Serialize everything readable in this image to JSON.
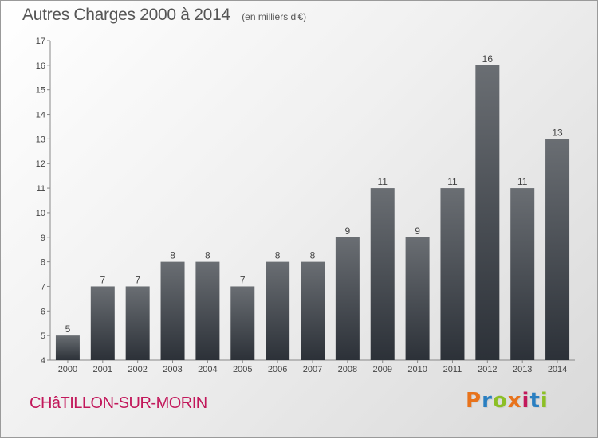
{
  "chart_data": {
    "type": "bar",
    "title": "Autres Charges 2000 à 2014",
    "subtitle": "(en milliers d'€)",
    "categories": [
      "2000",
      "2001",
      "2002",
      "2003",
      "2004",
      "2005",
      "2006",
      "2007",
      "2008",
      "2009",
      "2010",
      "2011",
      "2012",
      "2013",
      "2014"
    ],
    "values": [
      5,
      7,
      7,
      8,
      8,
      7,
      8,
      8,
      9,
      11,
      9,
      11,
      16,
      11,
      13
    ],
    "ylim": [
      4,
      17
    ],
    "yticks": [
      4,
      5,
      6,
      7,
      8,
      9,
      10,
      11,
      12,
      13,
      14,
      15,
      16,
      17
    ],
    "grid": false,
    "bar_color_top": "#6a6e73",
    "bar_color_bottom": "#2c3138"
  },
  "footer": {
    "commune": "CHâTILLON-SUR-MORIN",
    "brand": "Proxiti",
    "brand_colors": [
      "#e8731c",
      "#2a7fc1",
      "#8cbf26",
      "#e8731c",
      "#c2185b",
      "#2a7fc1",
      "#8cbf26"
    ]
  }
}
